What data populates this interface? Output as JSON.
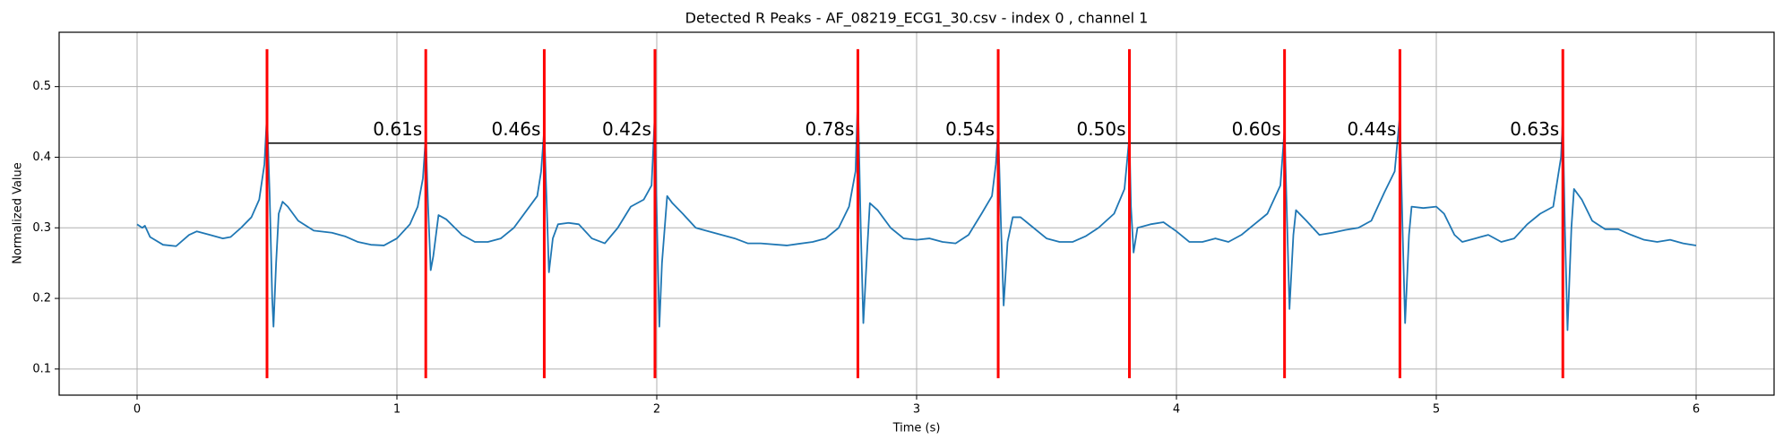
{
  "chart_data": {
    "type": "line",
    "title": "Detected R Peaks - AF_08219_ECG1_30.csv - index 0 , channel 1",
    "xlabel": "Time (s)",
    "ylabel": "Normalized Value",
    "color": "#1f77b4",
    "x": [
      0,
      0.02,
      0.03,
      0.05,
      0.1,
      0.15,
      0.2,
      0.23,
      0.28,
      0.33,
      0.36,
      0.4,
      0.44,
      0.47,
      0.49,
      0.5,
      0.51,
      0.52,
      0.525,
      0.535,
      0.545,
      0.56,
      0.58,
      0.62,
      0.68,
      0.75,
      0.8,
      0.85,
      0.9,
      0.95,
      1.0,
      1.05,
      1.08,
      1.1,
      1.111,
      1.12,
      1.13,
      1.14,
      1.16,
      1.19,
      1.25,
      1.3,
      1.35,
      1.4,
      1.45,
      1.5,
      1.54,
      1.555,
      1.567,
      1.575,
      1.585,
      1.6,
      1.62,
      1.66,
      1.7,
      1.75,
      1.8,
      1.85,
      1.9,
      1.95,
      1.98,
      1.993,
      2.0,
      2.01,
      2.02,
      2.04,
      2.06,
      2.1,
      2.15,
      2.2,
      2.3,
      2.35,
      2.4,
      2.5,
      2.6,
      2.65,
      2.7,
      2.74,
      2.765,
      2.774,
      2.785,
      2.795,
      2.81,
      2.82,
      2.85,
      2.9,
      2.95,
      3.0,
      3.05,
      3.1,
      3.15,
      3.2,
      3.25,
      3.29,
      3.305,
      3.314,
      3.325,
      3.335,
      3.35,
      3.37,
      3.4,
      3.45,
      3.5,
      3.55,
      3.6,
      3.65,
      3.7,
      3.76,
      3.8,
      3.819,
      3.825,
      3.835,
      3.85,
      3.9,
      3.95,
      4.0,
      4.05,
      4.1,
      4.15,
      4.2,
      4.25,
      4.3,
      4.35,
      4.4,
      4.416,
      4.425,
      4.435,
      4.45,
      4.46,
      4.5,
      4.55,
      4.6,
      4.65,
      4.7,
      4.75,
      4.8,
      4.84,
      4.86,
      4.87,
      4.88,
      4.895,
      4.905,
      4.95,
      5.0,
      5.03,
      5.07,
      5.1,
      5.15,
      5.2,
      5.25,
      5.3,
      5.35,
      5.4,
      5.45,
      5.48,
      5.487,
      5.495,
      5.505,
      5.52,
      5.53,
      5.56,
      5.6,
      5.65,
      5.7,
      5.75,
      5.8,
      5.85,
      5.9,
      5.95,
      6.0
    ],
    "values": [
      0.305,
      0.3,
      0.303,
      0.287,
      0.276,
      0.274,
      0.29,
      0.295,
      0.29,
      0.285,
      0.287,
      0.3,
      0.315,
      0.34,
      0.39,
      0.462,
      0.35,
      0.2,
      0.16,
      0.25,
      0.32,
      0.337,
      0.33,
      0.31,
      0.296,
      0.293,
      0.288,
      0.28,
      0.276,
      0.275,
      0.285,
      0.305,
      0.33,
      0.37,
      0.43,
      0.33,
      0.24,
      0.26,
      0.318,
      0.312,
      0.29,
      0.28,
      0.28,
      0.285,
      0.3,
      0.325,
      0.345,
      0.38,
      0.44,
      0.35,
      0.237,
      0.285,
      0.305,
      0.307,
      0.305,
      0.285,
      0.278,
      0.3,
      0.33,
      0.34,
      0.36,
      0.465,
      0.32,
      0.16,
      0.25,
      0.345,
      0.335,
      0.32,
      0.3,
      0.295,
      0.285,
      0.278,
      0.278,
      0.275,
      0.28,
      0.285,
      0.3,
      0.33,
      0.38,
      0.488,
      0.3,
      0.165,
      0.27,
      0.335,
      0.325,
      0.3,
      0.285,
      0.283,
      0.285,
      0.28,
      0.278,
      0.29,
      0.32,
      0.345,
      0.39,
      0.44,
      0.3,
      0.19,
      0.28,
      0.315,
      0.315,
      0.3,
      0.285,
      0.28,
      0.28,
      0.288,
      0.3,
      0.32,
      0.355,
      0.43,
      0.33,
      0.265,
      0.3,
      0.305,
      0.308,
      0.295,
      0.28,
      0.28,
      0.285,
      0.28,
      0.29,
      0.305,
      0.32,
      0.36,
      0.44,
      0.32,
      0.185,
      0.29,
      0.325,
      0.31,
      0.29,
      0.293,
      0.297,
      0.3,
      0.31,
      0.35,
      0.38,
      0.46,
      0.3,
      0.165,
      0.29,
      0.33,
      0.328,
      0.33,
      0.32,
      0.29,
      0.28,
      0.285,
      0.29,
      0.28,
      0.285,
      0.305,
      0.32,
      0.33,
      0.4,
      0.455,
      0.3,
      0.155,
      0.3,
      0.355,
      0.34,
      0.31,
      0.298,
      0.298,
      0.29,
      0.283,
      0.28,
      0.283,
      0.278,
      0.275
    ],
    "peaks": {
      "x": [
        0.5,
        1.111,
        1.567,
        1.993,
        2.774,
        3.314,
        3.819,
        4.416,
        4.86,
        5.487
      ],
      "span": [
        0.087,
        0.553
      ],
      "color": "#ff0000"
    },
    "intervals": {
      "level": 0.42,
      "color": "#000000",
      "values": [
        0.61,
        0.46,
        0.42,
        0.78,
        0.54,
        0.5,
        0.6,
        0.44,
        0.63
      ],
      "value_labels": [
        "0.61s",
        "0.46s",
        "0.42s",
        "0.78s",
        "0.54s",
        "0.50s",
        "0.60s",
        "0.44s",
        "0.63s"
      ]
    },
    "xlim": [
      -0.3,
      6.3
    ],
    "ylim": [
      0.063,
      0.577
    ],
    "xticks": [
      0,
      1,
      2,
      3,
      4,
      5,
      6
    ],
    "yticks": [
      0.1,
      0.2,
      0.3,
      0.4,
      0.5
    ],
    "grid": true
  }
}
